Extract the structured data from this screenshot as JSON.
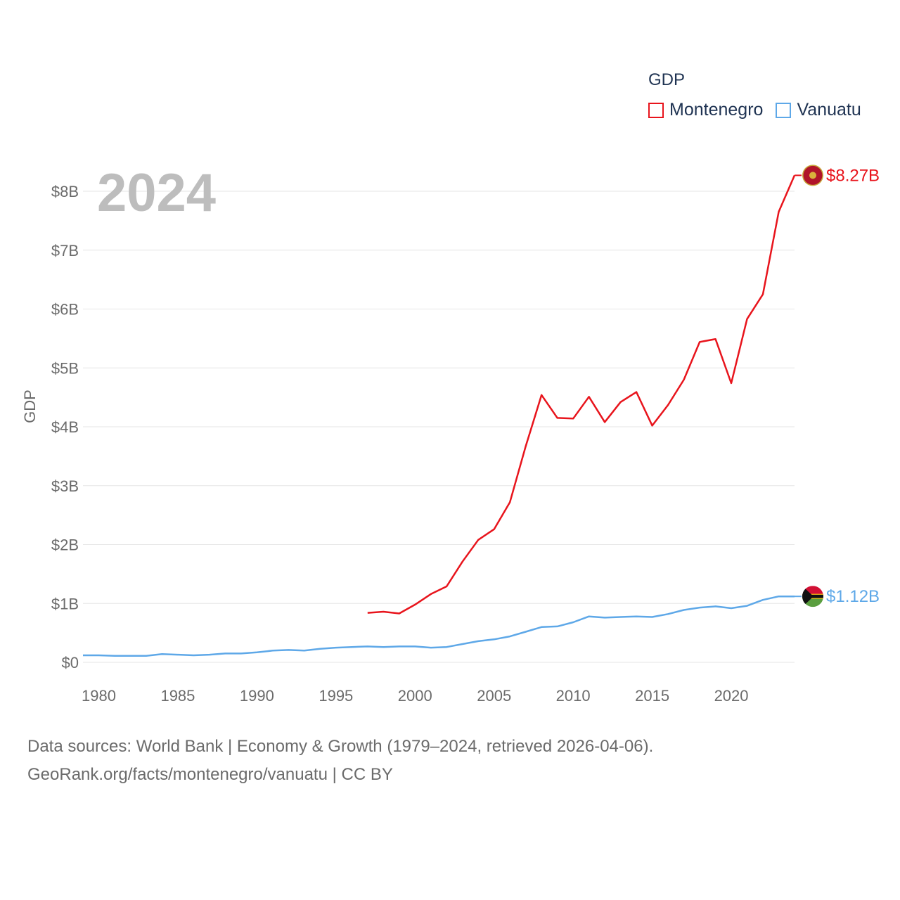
{
  "legend": {
    "title": "GDP",
    "items": [
      {
        "name": "Montenegro",
        "color": "#e8141c"
      },
      {
        "name": "Vanuatu",
        "color": "#5ea8e8"
      }
    ]
  },
  "year_label": "2024",
  "footer": {
    "line1": "Data sources: World Bank | Economy & Growth (1979–2024, retrieved 2026-04-06).",
    "line2": "GeoRank.org/facts/montenegro/vanuatu | CC BY"
  },
  "chart_data": {
    "type": "line",
    "title": "",
    "xlabel": "",
    "ylabel": "GDP",
    "xlim": [
      1979,
      2024
    ],
    "ylim": [
      0,
      8.6
    ],
    "y_ticks": [
      0,
      1,
      2,
      3,
      4,
      5,
      6,
      7,
      8
    ],
    "y_tick_labels": [
      "$0",
      "$1B",
      "$2B",
      "$3B",
      "$4B",
      "$5B",
      "$6B",
      "$7B",
      "$8B"
    ],
    "x_ticks": [
      1980,
      1985,
      1990,
      1995,
      2000,
      2005,
      2010,
      2015,
      2020
    ],
    "x_tick_labels": [
      "1980",
      "1985",
      "1990",
      "1995",
      "2000",
      "2005",
      "2010",
      "2015",
      "2020"
    ],
    "series": [
      {
        "name": "Montenegro",
        "color": "#e8141c",
        "end_label": "$8.27B",
        "x": [
          1997,
          1998,
          1999,
          2000,
          2001,
          2002,
          2003,
          2004,
          2005,
          2006,
          2007,
          2008,
          2009,
          2010,
          2011,
          2012,
          2013,
          2014,
          2015,
          2016,
          2017,
          2018,
          2019,
          2020,
          2021,
          2022,
          2023,
          2024
        ],
        "values": [
          0.84,
          0.86,
          0.83,
          0.98,
          1.16,
          1.29,
          1.71,
          2.08,
          2.26,
          2.72,
          3.67,
          4.54,
          4.15,
          4.14,
          4.51,
          4.08,
          4.42,
          4.59,
          4.02,
          4.37,
          4.8,
          5.44,
          5.49,
          4.74,
          5.83,
          6.25,
          7.65,
          8.27
        ]
      },
      {
        "name": "Vanuatu",
        "color": "#5ea8e8",
        "end_label": "$1.12B",
        "x": [
          1979,
          1980,
          1981,
          1982,
          1983,
          1984,
          1985,
          1986,
          1987,
          1988,
          1989,
          1990,
          1991,
          1992,
          1993,
          1994,
          1995,
          1996,
          1997,
          1998,
          1999,
          2000,
          2001,
          2002,
          2003,
          2004,
          2005,
          2006,
          2007,
          2008,
          2009,
          2010,
          2011,
          2012,
          2013,
          2014,
          2015,
          2016,
          2017,
          2018,
          2019,
          2020,
          2021,
          2022,
          2023,
          2024
        ],
        "values": [
          0.12,
          0.12,
          0.11,
          0.11,
          0.11,
          0.14,
          0.13,
          0.12,
          0.13,
          0.15,
          0.15,
          0.17,
          0.2,
          0.21,
          0.2,
          0.23,
          0.25,
          0.26,
          0.27,
          0.26,
          0.27,
          0.27,
          0.25,
          0.26,
          0.31,
          0.36,
          0.39,
          0.44,
          0.52,
          0.6,
          0.61,
          0.68,
          0.78,
          0.76,
          0.77,
          0.78,
          0.77,
          0.82,
          0.89,
          0.93,
          0.95,
          0.92,
          0.96,
          1.06,
          1.12,
          1.12
        ]
      }
    ]
  }
}
